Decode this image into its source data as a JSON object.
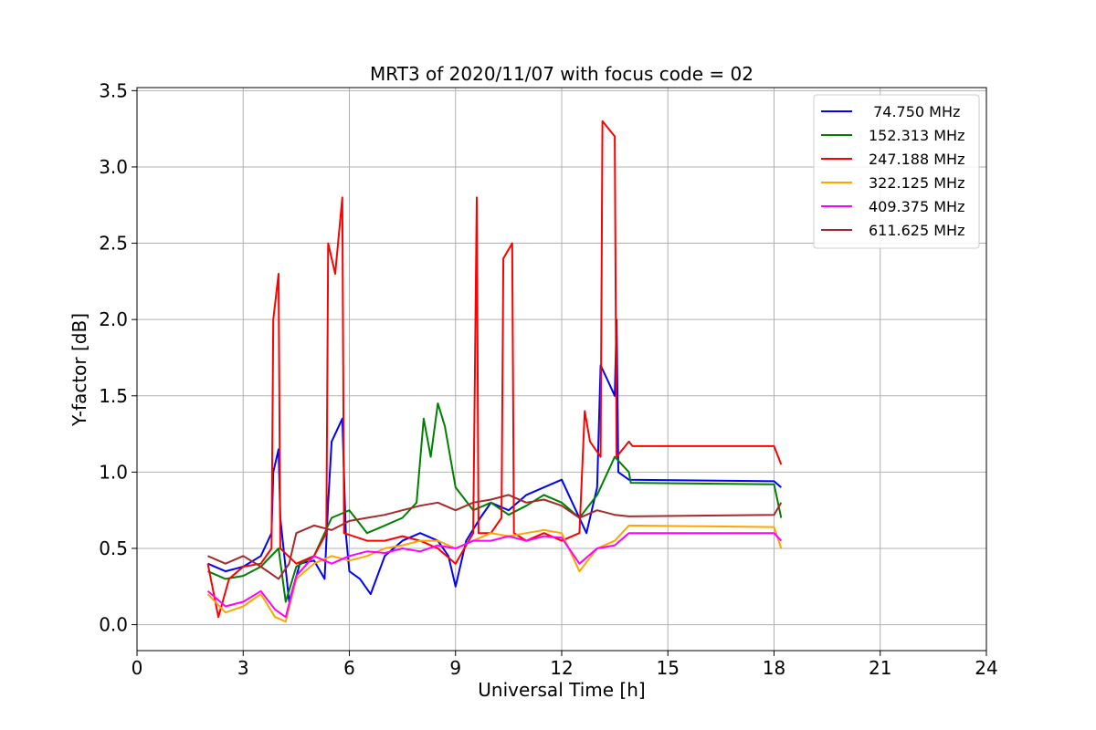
{
  "chart_data": {
    "type": "line",
    "title": "MRT3 of 2020/11/07 with focus code = 02",
    "xlabel": "Universal Time [h]",
    "ylabel": "Y-factor [dB]",
    "xlim": [
      0,
      24
    ],
    "ylim": [
      -0.17,
      3.52
    ],
    "xticks": [
      0,
      3,
      6,
      9,
      12,
      15,
      18,
      21,
      24
    ],
    "xtick_labels": [
      "0",
      "3",
      "6",
      "9",
      "12",
      "15",
      "18",
      "21",
      "24"
    ],
    "yticks": [
      0.0,
      0.5,
      1.0,
      1.5,
      2.0,
      2.5,
      3.0,
      3.5
    ],
    "ytick_labels": [
      "0.0",
      "0.5",
      "1.0",
      "1.5",
      "2.0",
      "2.5",
      "3.0",
      "3.5"
    ],
    "grid": true,
    "legend_position": "top-right",
    "series": [
      {
        "name": " 74.750 MHz",
        "color": "#0000ff",
        "points": [
          [
            2.0,
            0.4
          ],
          [
            2.5,
            0.35
          ],
          [
            3.0,
            0.38
          ],
          [
            3.5,
            0.45
          ],
          [
            3.8,
            0.6
          ],
          [
            3.85,
            1.0
          ],
          [
            4.0,
            1.15
          ],
          [
            4.05,
            0.7
          ],
          [
            4.3,
            0.15
          ],
          [
            4.6,
            0.4
          ],
          [
            5.0,
            0.42
          ],
          [
            5.3,
            0.3
          ],
          [
            5.4,
            0.8
          ],
          [
            5.5,
            1.2
          ],
          [
            5.8,
            1.35
          ],
          [
            5.9,
            0.6
          ],
          [
            6.0,
            0.35
          ],
          [
            6.3,
            0.3
          ],
          [
            6.6,
            0.2
          ],
          [
            7.0,
            0.45
          ],
          [
            7.5,
            0.55
          ],
          [
            8.0,
            0.6
          ],
          [
            8.5,
            0.55
          ],
          [
            8.8,
            0.45
          ],
          [
            9.0,
            0.25
          ],
          [
            9.3,
            0.55
          ],
          [
            9.7,
            0.7
          ],
          [
            10.0,
            0.8
          ],
          [
            10.5,
            0.75
          ],
          [
            11.0,
            0.85
          ],
          [
            11.5,
            0.9
          ],
          [
            12.0,
            0.95
          ],
          [
            12.3,
            0.8
          ],
          [
            12.7,
            0.6
          ],
          [
            13.0,
            0.9
          ],
          [
            13.1,
            1.7
          ],
          [
            13.3,
            1.6
          ],
          [
            13.5,
            1.5
          ],
          [
            13.55,
            2.0
          ],
          [
            13.6,
            1.0
          ],
          [
            13.9,
            0.95
          ],
          [
            18.0,
            0.94
          ],
          [
            18.2,
            0.9
          ]
        ]
      },
      {
        "name": "152.313 MHz",
        "color": "#008000",
        "points": [
          [
            2.0,
            0.35
          ],
          [
            2.5,
            0.3
          ],
          [
            3.0,
            0.32
          ],
          [
            3.5,
            0.38
          ],
          [
            4.0,
            0.5
          ],
          [
            4.2,
            0.15
          ],
          [
            4.5,
            0.38
          ],
          [
            5.0,
            0.45
          ],
          [
            5.5,
            0.7
          ],
          [
            6.0,
            0.75
          ],
          [
            6.5,
            0.6
          ],
          [
            7.0,
            0.65
          ],
          [
            7.5,
            0.7
          ],
          [
            7.9,
            0.8
          ],
          [
            8.1,
            1.35
          ],
          [
            8.3,
            1.1
          ],
          [
            8.5,
            1.45
          ],
          [
            8.7,
            1.3
          ],
          [
            9.0,
            0.9
          ],
          [
            9.5,
            0.75
          ],
          [
            10.0,
            0.8
          ],
          [
            10.5,
            0.72
          ],
          [
            11.0,
            0.78
          ],
          [
            11.5,
            0.85
          ],
          [
            12.0,
            0.8
          ],
          [
            12.5,
            0.7
          ],
          [
            13.0,
            0.85
          ],
          [
            13.5,
            1.1
          ],
          [
            13.9,
            1.0
          ],
          [
            13.95,
            0.93
          ],
          [
            18.0,
            0.92
          ],
          [
            18.2,
            0.7
          ]
        ]
      },
      {
        "name": "247.188 MHz",
        "color": "#ff0000",
        "points": [
          [
            2.0,
            0.4
          ],
          [
            2.3,
            0.05
          ],
          [
            2.6,
            0.3
          ],
          [
            3.0,
            0.38
          ],
          [
            3.5,
            0.4
          ],
          [
            3.8,
            0.5
          ],
          [
            3.85,
            2.0
          ],
          [
            4.0,
            2.3
          ],
          [
            4.05,
            0.5
          ],
          [
            4.5,
            0.4
          ],
          [
            5.0,
            0.45
          ],
          [
            5.35,
            0.6
          ],
          [
            5.4,
            2.5
          ],
          [
            5.6,
            2.3
          ],
          [
            5.8,
            2.8
          ],
          [
            5.85,
            0.6
          ],
          [
            6.5,
            0.55
          ],
          [
            7.0,
            0.55
          ],
          [
            7.5,
            0.58
          ],
          [
            8.0,
            0.55
          ],
          [
            8.5,
            0.5
          ],
          [
            9.0,
            0.4
          ],
          [
            9.5,
            0.6
          ],
          [
            9.6,
            2.8
          ],
          [
            9.65,
            0.6
          ],
          [
            10.0,
            0.6
          ],
          [
            10.3,
            0.7
          ],
          [
            10.35,
            2.4
          ],
          [
            10.6,
            2.5
          ],
          [
            10.65,
            0.6
          ],
          [
            11.0,
            0.55
          ],
          [
            11.5,
            0.6
          ],
          [
            12.0,
            0.55
          ],
          [
            12.5,
            0.6
          ],
          [
            12.65,
            1.4
          ],
          [
            12.8,
            1.2
          ],
          [
            13.1,
            1.1
          ],
          [
            13.15,
            3.3
          ],
          [
            13.5,
            3.2
          ],
          [
            13.55,
            1.1
          ],
          [
            13.9,
            1.2
          ],
          [
            14.0,
            1.17
          ],
          [
            18.0,
            1.17
          ],
          [
            18.2,
            1.05
          ]
        ]
      },
      {
        "name": "322.125 MHz",
        "color": "#ffa500",
        "points": [
          [
            2.0,
            0.2
          ],
          [
            2.5,
            0.08
          ],
          [
            3.0,
            0.12
          ],
          [
            3.5,
            0.2
          ],
          [
            3.9,
            0.05
          ],
          [
            4.2,
            0.02
          ],
          [
            4.5,
            0.3
          ],
          [
            5.0,
            0.4
          ],
          [
            5.5,
            0.45
          ],
          [
            6.0,
            0.42
          ],
          [
            6.5,
            0.45
          ],
          [
            7.0,
            0.5
          ],
          [
            7.5,
            0.52
          ],
          [
            8.0,
            0.55
          ],
          [
            8.5,
            0.55
          ],
          [
            9.0,
            0.5
          ],
          [
            9.5,
            0.55
          ],
          [
            10.0,
            0.6
          ],
          [
            10.5,
            0.58
          ],
          [
            11.0,
            0.6
          ],
          [
            11.5,
            0.62
          ],
          [
            12.0,
            0.6
          ],
          [
            12.5,
            0.35
          ],
          [
            13.0,
            0.5
          ],
          [
            13.5,
            0.55
          ],
          [
            13.9,
            0.65
          ],
          [
            18.0,
            0.64
          ],
          [
            18.2,
            0.5
          ]
        ]
      },
      {
        "name": "409.375 MHz",
        "color": "#ff00ff",
        "points": [
          [
            2.0,
            0.22
          ],
          [
            2.5,
            0.12
          ],
          [
            3.0,
            0.15
          ],
          [
            3.5,
            0.22
          ],
          [
            3.9,
            0.1
          ],
          [
            4.2,
            0.05
          ],
          [
            4.5,
            0.32
          ],
          [
            5.0,
            0.45
          ],
          [
            5.5,
            0.4
          ],
          [
            6.0,
            0.45
          ],
          [
            6.5,
            0.48
          ],
          [
            7.0,
            0.47
          ],
          [
            7.5,
            0.5
          ],
          [
            8.0,
            0.48
          ],
          [
            8.5,
            0.52
          ],
          [
            9.0,
            0.5
          ],
          [
            9.5,
            0.55
          ],
          [
            10.0,
            0.55
          ],
          [
            10.5,
            0.58
          ],
          [
            11.0,
            0.55
          ],
          [
            11.5,
            0.58
          ],
          [
            12.0,
            0.57
          ],
          [
            12.5,
            0.4
          ],
          [
            13.0,
            0.5
          ],
          [
            13.5,
            0.52
          ],
          [
            13.9,
            0.6
          ],
          [
            18.0,
            0.6
          ],
          [
            18.2,
            0.55
          ]
        ]
      },
      {
        "name": "611.625 MHz",
        "color": "#a52a2a",
        "points": [
          [
            2.0,
            0.45
          ],
          [
            2.5,
            0.4
          ],
          [
            3.0,
            0.45
          ],
          [
            3.5,
            0.38
          ],
          [
            4.0,
            0.3
          ],
          [
            4.3,
            0.4
          ],
          [
            4.5,
            0.6
          ],
          [
            5.0,
            0.65
          ],
          [
            5.5,
            0.62
          ],
          [
            6.0,
            0.68
          ],
          [
            6.5,
            0.7
          ],
          [
            7.0,
            0.72
          ],
          [
            7.5,
            0.75
          ],
          [
            8.0,
            0.78
          ],
          [
            8.5,
            0.8
          ],
          [
            9.0,
            0.75
          ],
          [
            9.5,
            0.8
          ],
          [
            10.0,
            0.82
          ],
          [
            10.5,
            0.85
          ],
          [
            11.0,
            0.8
          ],
          [
            11.5,
            0.82
          ],
          [
            12.0,
            0.78
          ],
          [
            12.5,
            0.7
          ],
          [
            13.0,
            0.75
          ],
          [
            13.5,
            0.72
          ],
          [
            13.9,
            0.71
          ],
          [
            18.0,
            0.72
          ],
          [
            18.2,
            0.8
          ]
        ]
      }
    ]
  }
}
